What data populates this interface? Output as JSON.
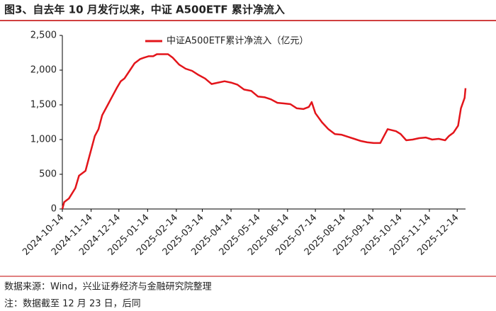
{
  "chart_data": {
    "type": "line",
    "title": "图3、自去年 10 月发行以来，中证 A500ETF 累计净流入",
    "x": [
      "2024-10-14",
      "2024-10-16",
      "2024-10-21",
      "2024-10-28",
      "2024-11-01",
      "2024-11-08",
      "2024-11-12",
      "2024-11-18",
      "2024-11-22",
      "2024-11-26",
      "2024-12-02",
      "2024-12-06",
      "2024-12-12",
      "2024-12-16",
      "2024-12-20",
      "2024-12-26",
      "2024-12-31",
      "2025-01-06",
      "2025-01-10",
      "2025-01-15",
      "2025-01-20",
      "2025-01-24",
      "2025-02-05",
      "2025-02-10",
      "2025-02-17",
      "2025-02-24",
      "2025-03-03",
      "2025-03-10",
      "2025-03-17",
      "2025-03-24",
      "2025-03-31",
      "2025-04-07",
      "2025-04-14",
      "2025-04-21",
      "2025-04-28",
      "2025-05-06",
      "2025-05-13",
      "2025-05-20",
      "2025-05-27",
      "2025-06-03",
      "2025-06-10",
      "2025-06-17",
      "2025-06-24",
      "2025-07-01",
      "2025-07-07",
      "2025-07-10",
      "2025-07-14",
      "2025-07-21",
      "2025-07-28",
      "2025-08-04",
      "2025-08-11",
      "2025-08-18",
      "2025-08-25",
      "2025-09-01",
      "2025-09-08",
      "2025-09-15",
      "2025-09-22",
      "2025-09-26",
      "2025-09-30",
      "2025-10-09",
      "2025-10-14",
      "2025-10-20",
      "2025-10-27",
      "2025-11-03",
      "2025-11-10",
      "2025-11-17",
      "2025-11-24",
      "2025-12-01",
      "2025-12-05",
      "2025-12-10",
      "2025-12-15",
      "2025-12-18",
      "2025-12-22",
      "2025-12-23"
    ],
    "series": [
      {
        "name": "中证A500ETF累计净流入（亿元）",
        "color": "#e3151b",
        "values": [
          0,
          100,
          150,
          300,
          480,
          550,
          750,
          1050,
          1150,
          1350,
          1500,
          1600,
          1750,
          1840,
          1880,
          2000,
          2100,
          2160,
          2180,
          2200,
          2200,
          2230,
          2230,
          2180,
          2080,
          2020,
          1990,
          1930,
          1880,
          1800,
          1820,
          1840,
          1820,
          1790,
          1720,
          1700,
          1620,
          1610,
          1580,
          1530,
          1520,
          1510,
          1450,
          1440,
          1470,
          1540,
          1380,
          1250,
          1150,
          1080,
          1070,
          1040,
          1010,
          980,
          960,
          950,
          950,
          1050,
          1150,
          1120,
          1080,
          990,
          1000,
          1020,
          1030,
          1000,
          1010,
          990,
          1050,
          1100,
          1200,
          1450,
          1600,
          1740
        ]
      }
    ],
    "xlim": [
      "2024-10-14",
      "2025-12-23"
    ],
    "xticks": [
      "2024-10-14",
      "2024-11-14",
      "2024-12-14",
      "2025-01-14",
      "2025-02-14",
      "2025-03-14",
      "2025-04-14",
      "2025-05-14",
      "2025-06-14",
      "2025-07-14",
      "2025-08-14",
      "2025-09-14",
      "2025-10-14",
      "2025-11-14",
      "2025-12-14"
    ],
    "ylim": [
      0,
      2500
    ],
    "yticks": [
      0,
      500,
      {
        "value": 1000,
        "label": "1,000"
      },
      {
        "value": 1500,
        "label": "1,500"
      },
      {
        "value": 2000,
        "label": "2,000"
      },
      {
        "value": 2500,
        "label": "2,500"
      }
    ],
    "legend": "top-center",
    "source": "数据来源：Wind，兴业证券经济与金融研究院整理",
    "note": "注：数据截至 12 月 23 日，后同"
  }
}
